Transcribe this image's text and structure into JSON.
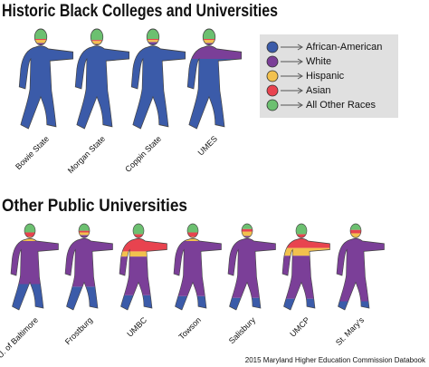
{
  "chart_data": [
    {
      "type": "pictograph",
      "title": "Historic Black Colleges and Universities",
      "categories": [
        "Bowie State",
        "Morgan State",
        "Coppin State",
        "UMES"
      ],
      "series": [
        {
          "name": "African-American",
          "color": "#3b5ba9",
          "values": [
            83,
            84,
            85,
            70
          ]
        },
        {
          "name": "White",
          "color": "#7b3f98",
          "values": [
            3,
            1,
            2,
            16
          ]
        },
        {
          "name": "Hispanic",
          "color": "#f2c14e",
          "values": [
            3,
            3,
            2,
            3
          ]
        },
        {
          "name": "Asian",
          "color": "#e8434f",
          "values": [
            1,
            1,
            1,
            1
          ]
        },
        {
          "name": "All Other Races",
          "color": "#6cc070",
          "values": [
            10,
            11,
            10,
            10
          ]
        }
      ]
    },
    {
      "type": "pictograph",
      "title": "Other Public Universities",
      "categories": [
        "U. of Baltimore",
        "Frostburg",
        "UMBC",
        "Towson",
        "Salisbury",
        "UMCP",
        "St. Mary's"
      ],
      "series": [
        {
          "color": "#3b5ba9",
          "values": [
            30,
            27,
            17,
            16,
            14,
            13,
            10
          ]
        },
        {
          "color": "#7b3f98",
          "values": [
            50,
            60,
            45,
            64,
            72,
            50,
            74
          ]
        },
        {
          "color": "#f2c14e",
          "values": [
            5,
            3,
            6,
            5,
            5,
            9,
            5
          ]
        },
        {
          "color": "#e8434f",
          "values": [
            5,
            2,
            20,
            5,
            3,
            16,
            4
          ]
        },
        {
          "color": "#6cc070",
          "values": [
            10,
            8,
            12,
            10,
            6,
            12,
            7
          ]
        }
      ],
      "note": "2015 Maryland Higher Education Commission Databook"
    }
  ]
}
